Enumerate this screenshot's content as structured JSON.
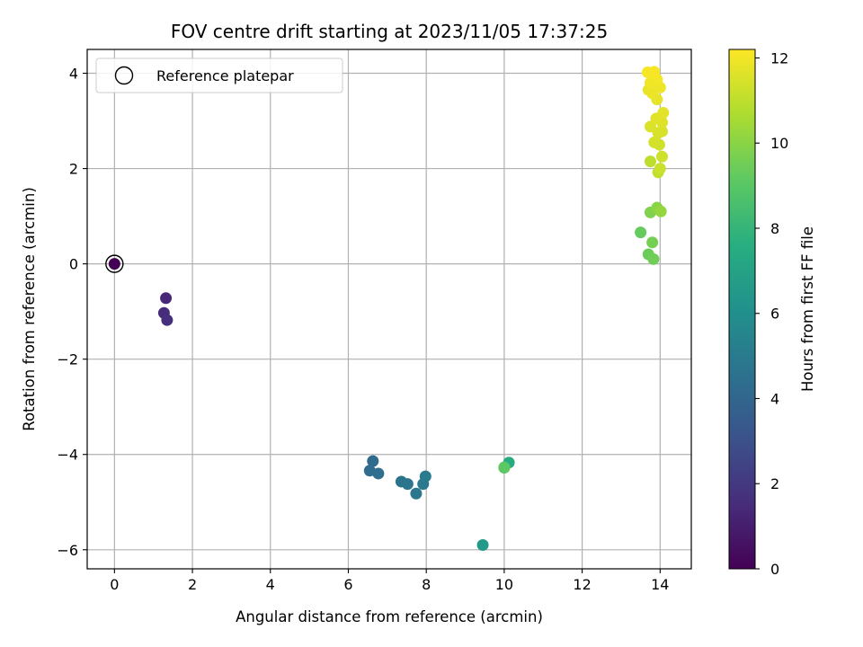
{
  "chart_data": {
    "type": "scatter",
    "title": "FOV centre drift starting at 2023/11/05 17:37:25",
    "xlabel": "Angular distance from reference (arcmin)",
    "ylabel": "Rotation from reference (arcmin)",
    "xlim": [
      -0.7,
      14.8
    ],
    "ylim": [
      -6.4,
      4.5
    ],
    "xticks": [
      0,
      2,
      4,
      6,
      8,
      10,
      12,
      14
    ],
    "xtick_labels": [
      "0",
      "2",
      "4",
      "6",
      "8",
      "10",
      "12",
      "14"
    ],
    "yticks": [
      4,
      2,
      0,
      -2,
      -4,
      -6
    ],
    "ytick_labels": [
      "4",
      "2",
      "0",
      "−2",
      "−4",
      "−6"
    ],
    "grid": true,
    "legend": {
      "placement": "top-left",
      "entries": [
        "Reference platepar"
      ]
    },
    "colormap": "viridis",
    "colorbar": {
      "label": "Hours from first FF file",
      "range": [
        0,
        12.2
      ],
      "ticks": [
        0,
        2,
        4,
        6,
        8,
        10,
        12
      ],
      "tick_labels": [
        "0",
        "2",
        "4",
        "6",
        "8",
        "10",
        "12"
      ]
    },
    "reference_point": {
      "x": 0,
      "y": 0,
      "c": 0
    },
    "points": [
      {
        "x": 0,
        "y": 0,
        "c": 0
      },
      {
        "x": 1.32,
        "y": -0.72,
        "c": 1.4
      },
      {
        "x": 1.27,
        "y": -1.03,
        "c": 1.5
      },
      {
        "x": 1.35,
        "y": -1.18,
        "c": 1.6
      },
      {
        "x": 6.63,
        "y": -4.14,
        "c": 4.2
      },
      {
        "x": 6.55,
        "y": -4.34,
        "c": 4.3
      },
      {
        "x": 6.77,
        "y": -4.4,
        "c": 4.4
      },
      {
        "x": 7.36,
        "y": -4.57,
        "c": 4.6
      },
      {
        "x": 7.52,
        "y": -4.62,
        "c": 4.7
      },
      {
        "x": 7.74,
        "y": -4.82,
        "c": 4.8
      },
      {
        "x": 7.92,
        "y": -4.62,
        "c": 4.9
      },
      {
        "x": 7.98,
        "y": -4.46,
        "c": 5.0
      },
      {
        "x": 9.45,
        "y": -5.9,
        "c": 6.5
      },
      {
        "x": 10.12,
        "y": -4.17,
        "c": 7.5
      },
      {
        "x": 10.0,
        "y": -4.27,
        "c": 8.9
      },
      {
        "x": 10.0,
        "y": -4.28,
        "c": 9.1
      },
      {
        "x": 13.5,
        "y": 0.66,
        "c": 9.3
      },
      {
        "x": 13.7,
        "y": 0.2,
        "c": 9.4
      },
      {
        "x": 13.83,
        "y": 0.1,
        "c": 9.5
      },
      {
        "x": 13.8,
        "y": 0.45,
        "c": 9.6
      },
      {
        "x": 13.75,
        "y": 1.08,
        "c": 9.8
      },
      {
        "x": 13.92,
        "y": 1.18,
        "c": 10.0
      },
      {
        "x": 14.02,
        "y": 1.1,
        "c": 10.2
      },
      {
        "x": 13.75,
        "y": 2.15,
        "c": 11.0
      },
      {
        "x": 13.95,
        "y": 1.92,
        "c": 11.1
      },
      {
        "x": 14.0,
        "y": 2.0,
        "c": 11.2
      },
      {
        "x": 14.05,
        "y": 2.25,
        "c": 11.3
      },
      {
        "x": 13.98,
        "y": 2.5,
        "c": 11.35
      },
      {
        "x": 13.85,
        "y": 2.55,
        "c": 11.4
      },
      {
        "x": 13.95,
        "y": 2.75,
        "c": 11.45
      },
      {
        "x": 14.05,
        "y": 2.78,
        "c": 11.5
      },
      {
        "x": 13.75,
        "y": 2.88,
        "c": 11.55
      },
      {
        "x": 14.05,
        "y": 2.97,
        "c": 11.6
      },
      {
        "x": 13.9,
        "y": 3.05,
        "c": 11.65
      },
      {
        "x": 14.08,
        "y": 3.17,
        "c": 11.7
      },
      {
        "x": 13.92,
        "y": 3.45,
        "c": 11.75
      },
      {
        "x": 13.7,
        "y": 3.65,
        "c": 11.8
      },
      {
        "x": 13.8,
        "y": 3.58,
        "c": 11.85
      },
      {
        "x": 14.0,
        "y": 3.7,
        "c": 11.9
      },
      {
        "x": 13.75,
        "y": 3.8,
        "c": 11.95
      },
      {
        "x": 13.92,
        "y": 3.87,
        "c": 12.0
      },
      {
        "x": 13.68,
        "y": 4.02,
        "c": 12.05
      },
      {
        "x": 13.85,
        "y": 4.03,
        "c": 12.1
      }
    ]
  }
}
